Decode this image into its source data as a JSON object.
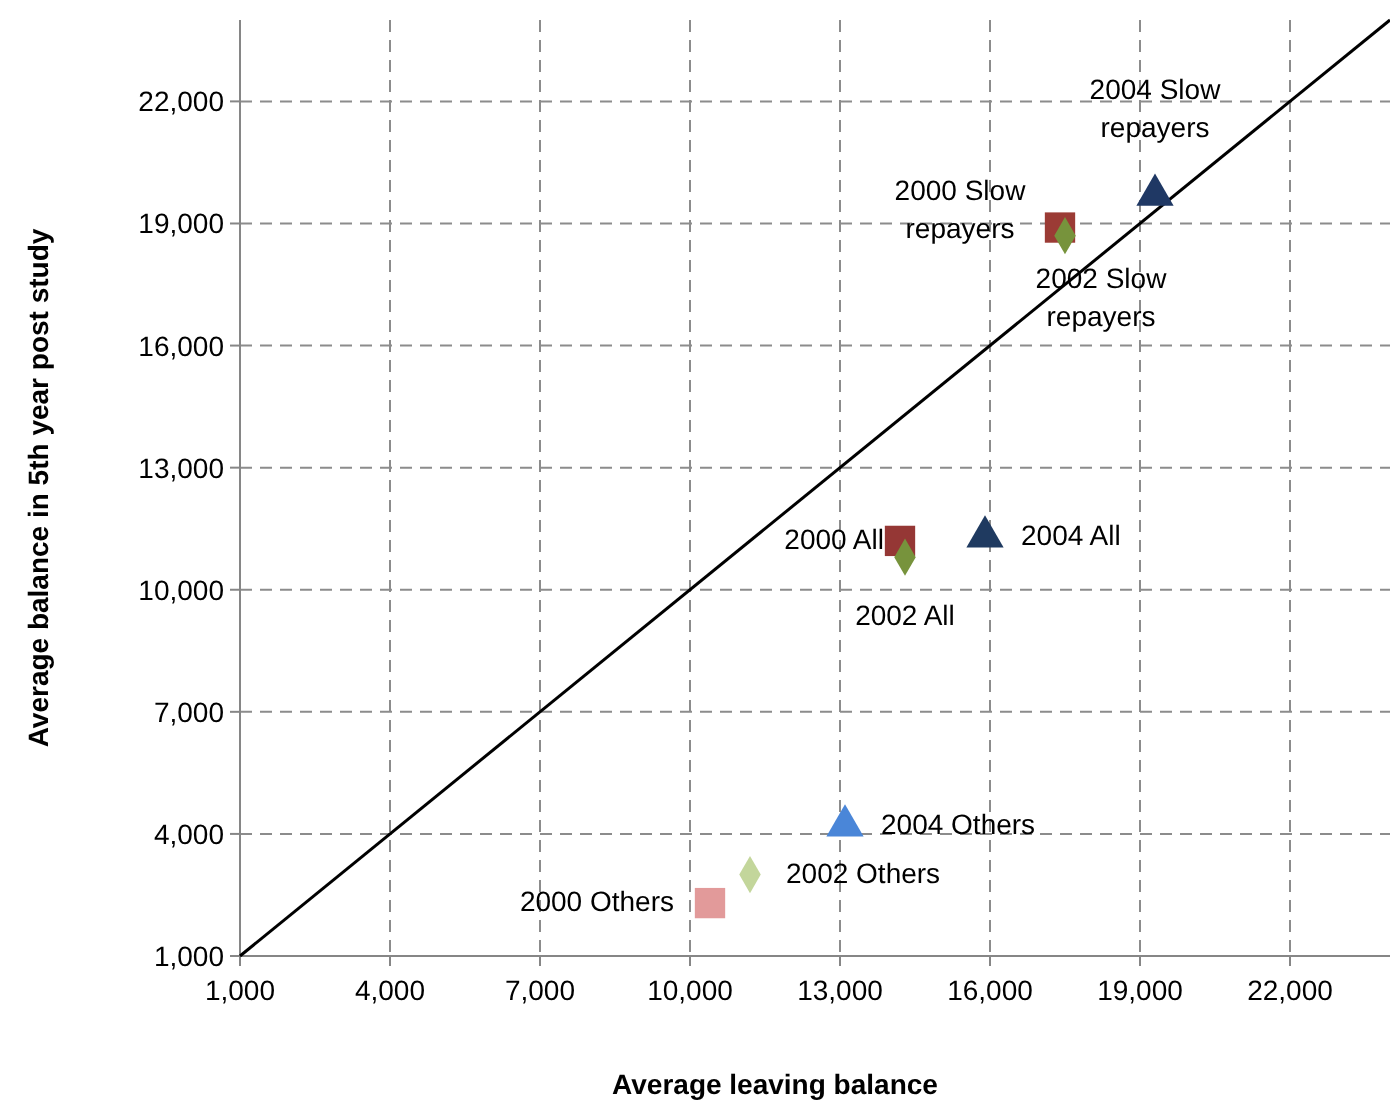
{
  "chart_data": {
    "type": "scatter",
    "xlabel": "Average leaving balance",
    "ylabel": "Average balance in 5th year post study",
    "xlim": [
      1000,
      24000
    ],
    "ylim": [
      1000,
      24000
    ],
    "xticks": [
      {
        "value": 1000,
        "label": "1,000"
      },
      {
        "value": 4000,
        "label": "4,000"
      },
      {
        "value": 7000,
        "label": "7,000"
      },
      {
        "value": 10000,
        "label": "10,000"
      },
      {
        "value": 13000,
        "label": "13,000"
      },
      {
        "value": 16000,
        "label": "16,000"
      },
      {
        "value": 19000,
        "label": "19,000"
      },
      {
        "value": 22000,
        "label": "22,000"
      }
    ],
    "yticks": [
      {
        "value": 1000,
        "label": "1,000"
      },
      {
        "value": 4000,
        "label": "4,000"
      },
      {
        "value": 7000,
        "label": "7,000"
      },
      {
        "value": 10000,
        "label": "10,000"
      },
      {
        "value": 13000,
        "label": "13,000"
      },
      {
        "value": 16000,
        "label": "16,000"
      },
      {
        "value": 19000,
        "label": "19,000"
      },
      {
        "value": 22000,
        "label": "22,000"
      }
    ],
    "grid": true,
    "series": [
      {
        "type": "line",
        "color": "#000000",
        "x": [
          1000,
          24000
        ],
        "values": [
          1000,
          24000
        ]
      },
      {
        "name": "2000 Slow repayers",
        "color": "#9b3b35",
        "marker": "square",
        "x": [
          17400
        ],
        "values": [
          18900
        ]
      },
      {
        "name": "2002 Slow repayers",
        "color": "#77933c",
        "marker": "diamond",
        "x": [
          17500
        ],
        "values": [
          18700
        ]
      },
      {
        "name": "2004 Slow repayers",
        "color": "#1f3864",
        "marker": "triangle",
        "x": [
          19300
        ],
        "values": [
          19700
        ]
      },
      {
        "name": "2000 All",
        "color": "#953735",
        "marker": "square",
        "x": [
          14200
        ],
        "values": [
          11200
        ]
      },
      {
        "name": "2002 All",
        "color": "#77933c",
        "marker": "diamond",
        "x": [
          14300
        ],
        "values": [
          10800
        ]
      },
      {
        "name": "2004 All",
        "color": "#1f3a60",
        "marker": "triangle",
        "x": [
          15900
        ],
        "values": [
          11300
        ]
      },
      {
        "name": "2000 Others",
        "color": "#e29a9a",
        "marker": "square",
        "x": [
          10400
        ],
        "values": [
          2300
        ]
      },
      {
        "name": "2002 Others",
        "color": "#c3d69b",
        "marker": "diamond",
        "x": [
          11200
        ],
        "values": [
          3000
        ]
      },
      {
        "name": "2004 Others",
        "color": "#4a86d8",
        "marker": "triangle",
        "x": [
          13100
        ],
        "values": [
          4200
        ]
      }
    ]
  }
}
